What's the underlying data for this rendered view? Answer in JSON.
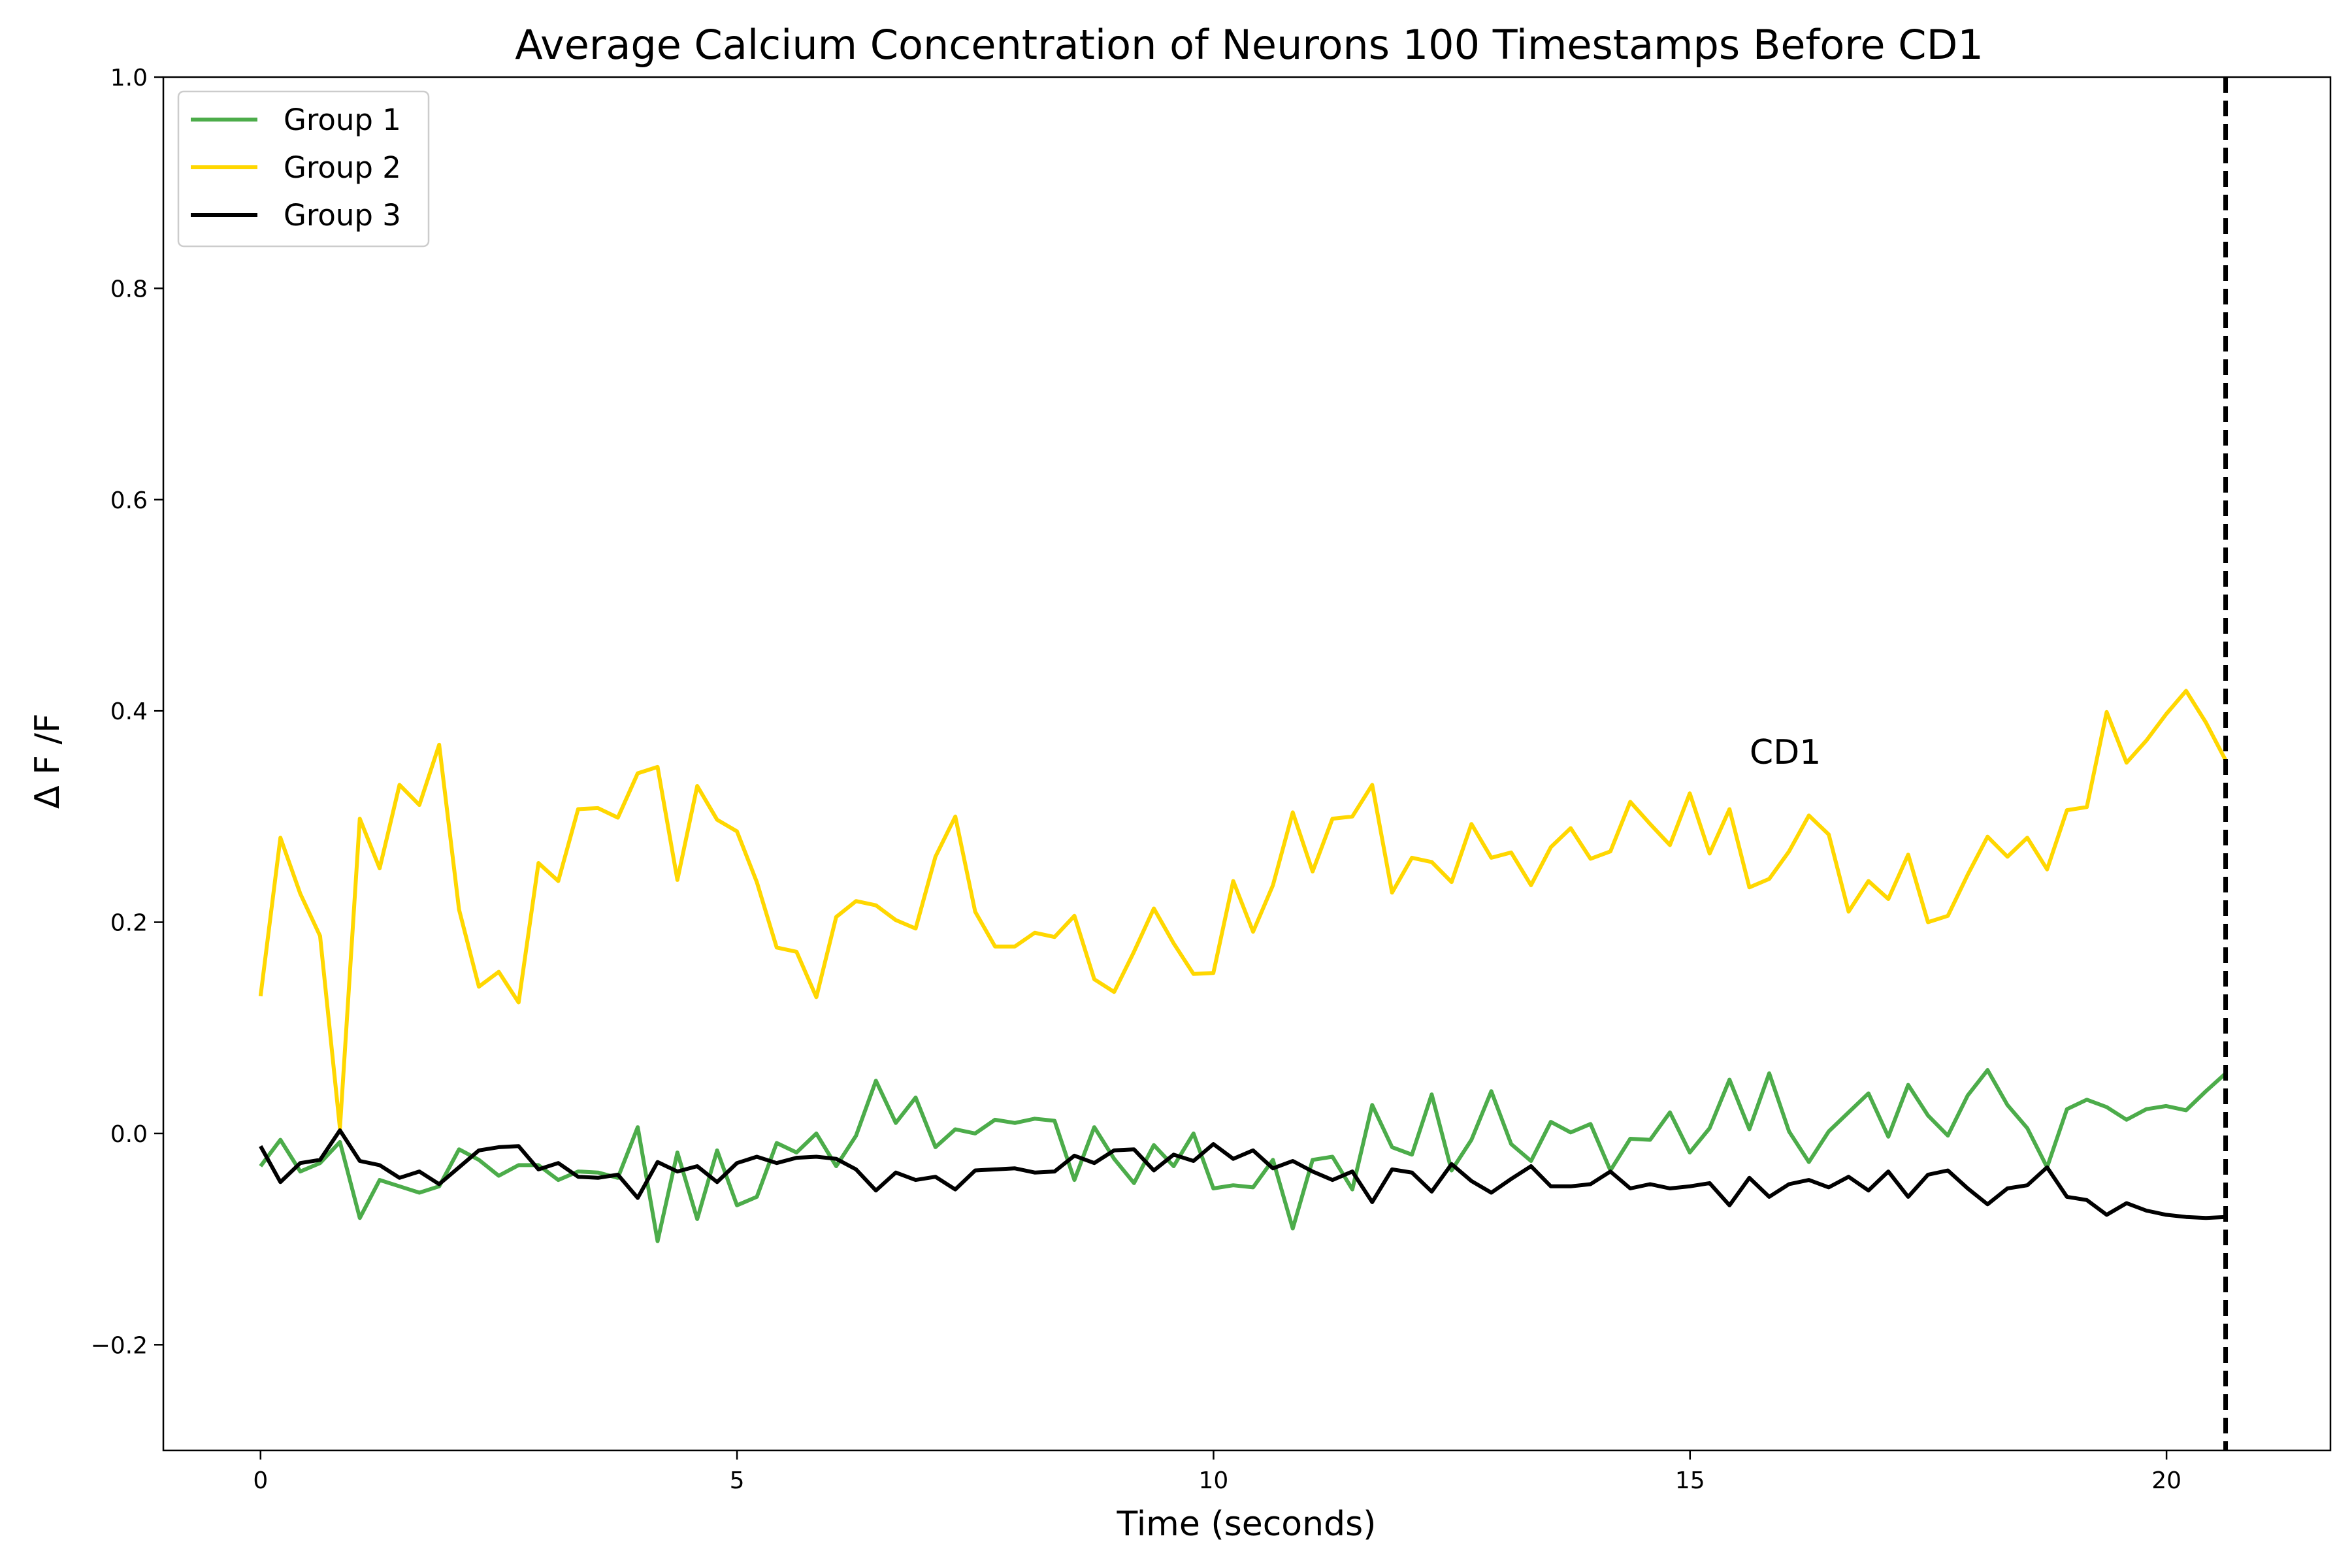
{
  "chart_data": {
    "type": "line",
    "title": "Average Calcium Concentration of Neurons 100 Timestamps Before CD1",
    "xlabel": "Time (seconds)",
    "ylabel": "Δ F /F",
    "xlim": [
      -1.02,
      21.72
    ],
    "ylim": [
      -0.3,
      1.0
    ],
    "xticks": [
      0,
      5,
      10,
      15,
      20
    ],
    "xtick_labels": [
      "0",
      "5",
      "10",
      "15",
      "20"
    ],
    "yticks": [
      -0.2,
      0.0,
      0.2,
      0.4,
      0.6,
      0.8,
      1.0
    ],
    "ytick_labels": [
      "−0.2",
      "0.0",
      "0.2",
      "0.4",
      "0.6",
      "0.8",
      "1.0"
    ],
    "grid": false,
    "legend_position": "top-left",
    "x_start": 0,
    "x_step": 0.2083,
    "event": {
      "label": "CD1",
      "x": 20.62,
      "line_style": "dashed",
      "color": "#000000",
      "label_x": 16.0,
      "label_y": 0.35
    },
    "series": [
      {
        "name": "Group 1",
        "color": "#4cac4a",
        "values": [
          -0.031,
          -0.006,
          -0.036,
          -0.028,
          -0.008,
          -0.08,
          -0.044,
          -0.05,
          -0.056,
          -0.05,
          -0.015,
          -0.025,
          -0.04,
          -0.03,
          -0.03,
          -0.044,
          -0.036,
          -0.037,
          -0.042,
          0.006,
          -0.102,
          -0.018,
          -0.081,
          -0.016,
          -0.068,
          -0.06,
          -0.009,
          -0.018,
          0.0,
          -0.031,
          -0.002,
          0.05,
          0.01,
          0.034,
          -0.013,
          0.004,
          0.0,
          0.013,
          0.01,
          0.014,
          0.012,
          -0.044,
          0.006,
          -0.024,
          -0.047,
          -0.011,
          -0.031,
          0.0,
          -0.052,
          -0.049,
          -0.051,
          -0.025,
          -0.09,
          -0.025,
          -0.022,
          -0.053,
          0.027,
          -0.013,
          -0.02,
          0.037,
          -0.035,
          -0.006,
          0.04,
          -0.01,
          -0.026,
          0.011,
          0.001,
          0.009,
          -0.035,
          -0.005,
          -0.006,
          0.02,
          -0.018,
          0.005,
          0.051,
          0.004,
          0.057,
          0.002,
          -0.027,
          0.002,
          0.02,
          0.038,
          -0.003,
          0.046,
          0.017,
          -0.002,
          0.036,
          0.06,
          0.027,
          0.005,
          -0.032,
          0.023,
          0.032,
          0.025,
          0.013,
          0.023,
          0.026,
          0.022,
          0.04,
          0.057
        ]
      },
      {
        "name": "Group 2",
        "color": "#ffd700",
        "values": [
          0.13,
          0.28,
          0.227,
          0.187,
          0.005,
          0.298,
          0.251,
          0.33,
          0.311,
          0.368,
          0.212,
          0.139,
          0.153,
          0.124,
          0.256,
          0.239,
          0.307,
          0.308,
          0.299,
          0.341,
          0.347,
          0.24,
          0.329,
          0.297,
          0.286,
          0.238,
          0.176,
          0.172,
          0.129,
          0.205,
          0.22,
          0.216,
          0.202,
          0.194,
          0.262,
          0.3,
          0.21,
          0.177,
          0.177,
          0.19,
          0.186,
          0.206,
          0.146,
          0.134,
          0.172,
          0.213,
          0.18,
          0.151,
          0.152,
          0.239,
          0.191,
          0.235,
          0.304,
          0.248,
          0.298,
          0.3,
          0.33,
          0.228,
          0.261,
          0.257,
          0.238,
          0.293,
          0.261,
          0.266,
          0.235,
          0.271,
          0.289,
          0.26,
          0.267,
          0.314,
          0.293,
          0.273,
          0.322,
          0.265,
          0.307,
          0.233,
          0.241,
          0.267,
          0.301,
          0.283,
          0.21,
          0.239,
          0.222,
          0.264,
          0.2,
          0.206,
          0.245,
          0.281,
          0.262,
          0.28,
          0.25,
          0.306,
          0.309,
          0.399,
          0.351,
          0.372,
          0.397,
          0.419,
          0.389,
          0.353
        ]
      },
      {
        "name": "Group 3",
        "color": "#000000",
        "values": [
          -0.012,
          -0.046,
          -0.028,
          -0.025,
          0.003,
          -0.026,
          -0.03,
          -0.042,
          -0.036,
          -0.048,
          -0.032,
          -0.016,
          -0.013,
          -0.012,
          -0.034,
          -0.028,
          -0.041,
          -0.042,
          -0.039,
          -0.061,
          -0.027,
          -0.036,
          -0.031,
          -0.046,
          -0.028,
          -0.022,
          -0.028,
          -0.023,
          -0.022,
          -0.024,
          -0.034,
          -0.054,
          -0.037,
          -0.044,
          -0.041,
          -0.053,
          -0.035,
          -0.034,
          -0.033,
          -0.037,
          -0.036,
          -0.021,
          -0.028,
          -0.016,
          -0.015,
          -0.035,
          -0.02,
          -0.026,
          -0.01,
          -0.024,
          -0.016,
          -0.033,
          -0.026,
          -0.036,
          -0.044,
          -0.036,
          -0.065,
          -0.034,
          -0.037,
          -0.055,
          -0.029,
          -0.045,
          -0.056,
          -0.043,
          -0.031,
          -0.05,
          -0.05,
          -0.048,
          -0.036,
          -0.052,
          -0.048,
          -0.052,
          -0.05,
          -0.047,
          -0.068,
          -0.042,
          -0.06,
          -0.048,
          -0.044,
          -0.051,
          -0.041,
          -0.054,
          -0.036,
          -0.06,
          -0.039,
          -0.035,
          -0.052,
          -0.067,
          -0.052,
          -0.049,
          -0.032,
          -0.06,
          -0.063,
          -0.077,
          -0.066,
          -0.073,
          -0.077,
          -0.079,
          -0.08,
          -0.079
        ]
      }
    ]
  }
}
